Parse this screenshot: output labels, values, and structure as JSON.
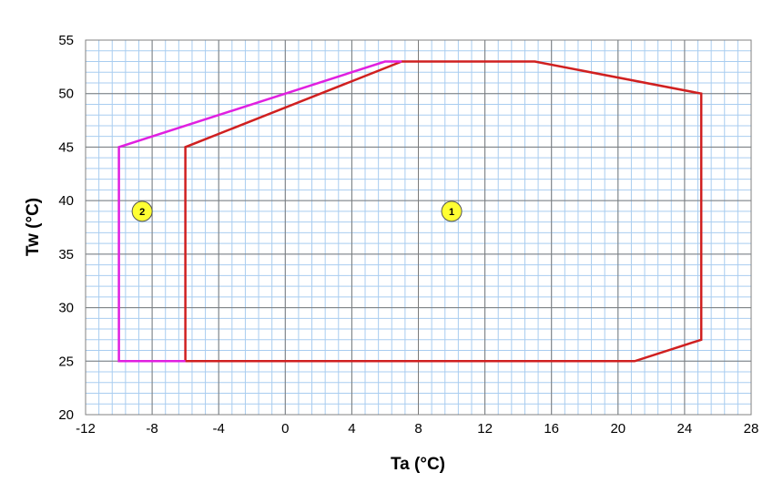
{
  "chart_data": {
    "type": "line",
    "xlabel": "Ta (°C)",
    "ylabel": "Tw (°C)",
    "xlim": [
      -12,
      28
    ],
    "ylim": [
      20,
      55
    ],
    "x_ticks": [
      -12,
      -8,
      -4,
      0,
      4,
      8,
      12,
      16,
      20,
      24,
      28
    ],
    "y_ticks": [
      20,
      25,
      30,
      35,
      40,
      45,
      50,
      55
    ],
    "x_minor_step": 0.8,
    "y_minor_step": 1,
    "grid": true,
    "series": [
      {
        "color": "#d02020",
        "points": [
          [
            -6,
            25
          ],
          [
            21,
            25
          ],
          [
            25,
            27
          ],
          [
            25,
            50
          ],
          [
            15,
            53
          ],
          [
            7,
            53
          ],
          [
            -6,
            45
          ],
          [
            -6,
            25
          ]
        ]
      },
      {
        "color": "#e020e0",
        "points": [
          [
            -6,
            25
          ],
          [
            -10,
            25
          ],
          [
            -10,
            45
          ],
          [
            6,
            53
          ],
          [
            7,
            53
          ]
        ]
      }
    ],
    "markers": [
      {
        "label": "1",
        "x": 10,
        "y": 39
      },
      {
        "label": "2",
        "x": -8.6,
        "y": 39
      }
    ],
    "marker_fill": "#ffff33"
  }
}
